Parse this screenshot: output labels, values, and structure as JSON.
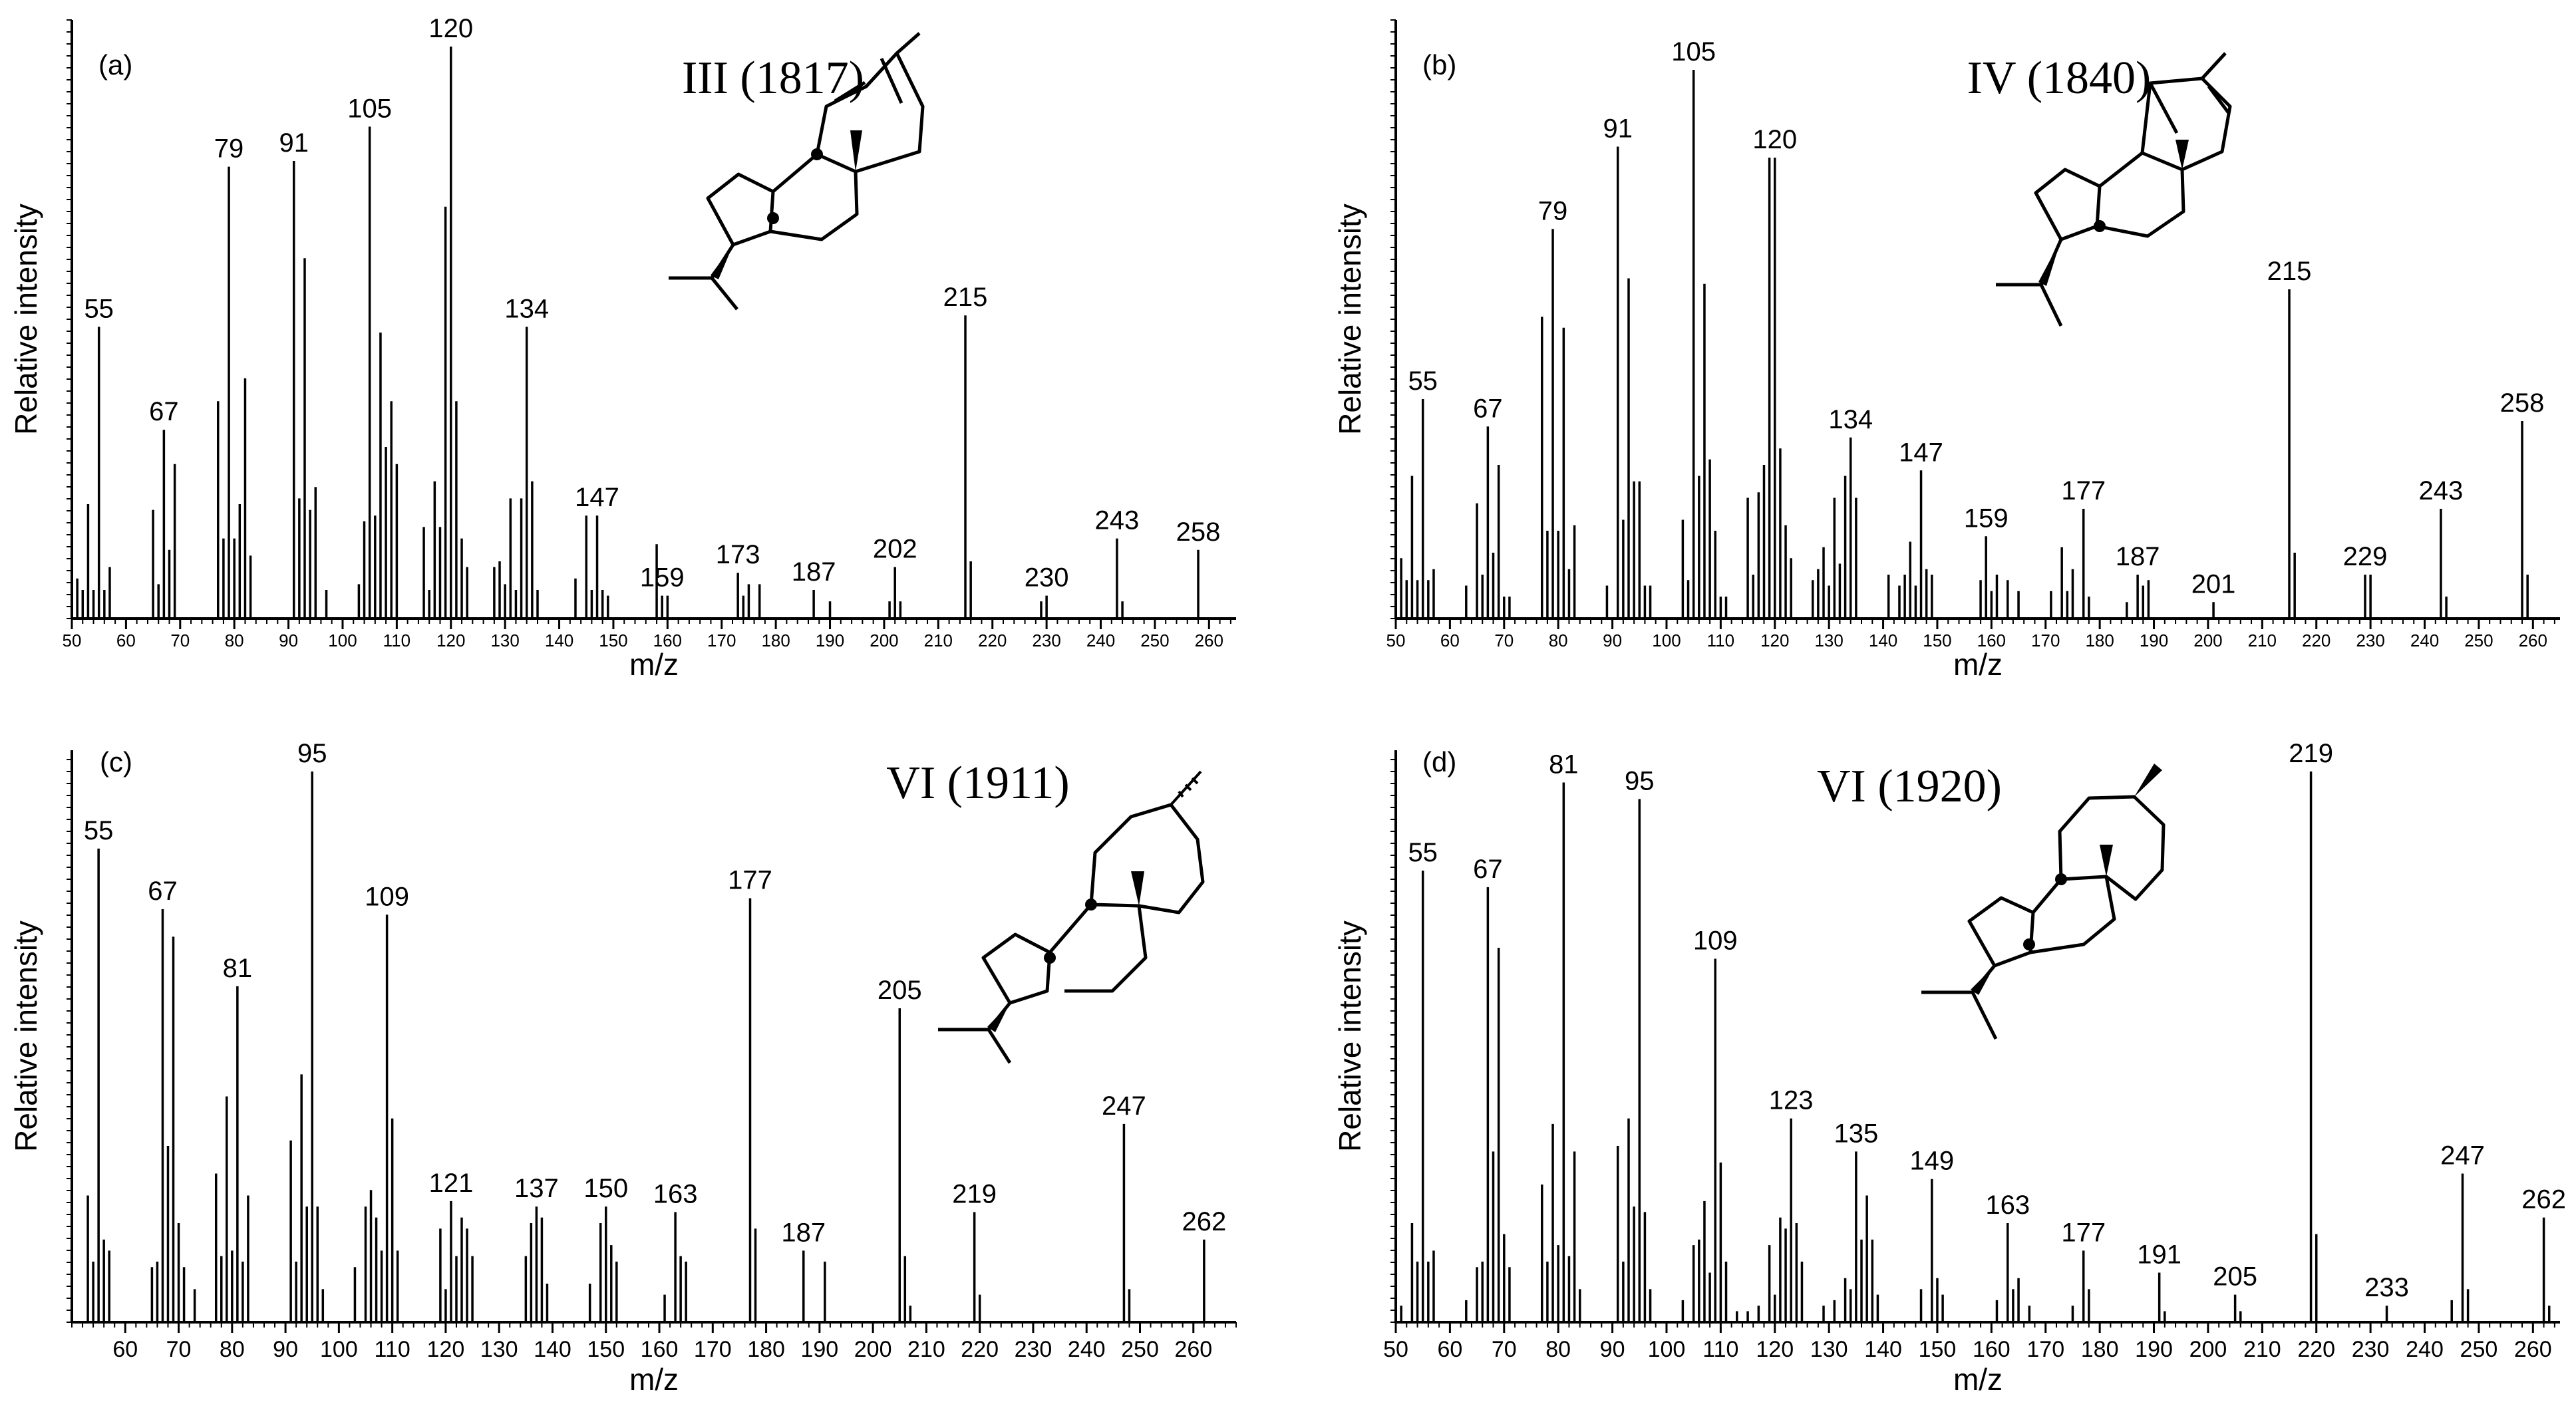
{
  "chart_data": [
    {
      "type": "bar",
      "panel_label": "(a)",
      "compound_label": "III (1817)",
      "xlabel": "m/z",
      "ylabel": "Relative intensity",
      "xlim": [
        50,
        265
      ],
      "ylim": [
        0,
        100
      ],
      "xticks": [
        50,
        60,
        70,
        80,
        90,
        100,
        110,
        120,
        130,
        140,
        150,
        160,
        170,
        180,
        190,
        200,
        210,
        220,
        230,
        240,
        250,
        260
      ],
      "peaks": [
        [
          51,
          7
        ],
        [
          52,
          5
        ],
        [
          53,
          20
        ],
        [
          54,
          5
        ],
        [
          55,
          51
        ],
        [
          56,
          5
        ],
        [
          57,
          9
        ],
        [
          65,
          19
        ],
        [
          66,
          6
        ],
        [
          67,
          33
        ],
        [
          68,
          12
        ],
        [
          69,
          27
        ],
        [
          77,
          38
        ],
        [
          78,
          14
        ],
        [
          79,
          79
        ],
        [
          80,
          14
        ],
        [
          81,
          20
        ],
        [
          82,
          42
        ],
        [
          83,
          11
        ],
        [
          91,
          80
        ],
        [
          92,
          21
        ],
        [
          93,
          63
        ],
        [
          94,
          19
        ],
        [
          95,
          23
        ],
        [
          97,
          5
        ],
        [
          103,
          6
        ],
        [
          104,
          17
        ],
        [
          105,
          86
        ],
        [
          106,
          18
        ],
        [
          107,
          50
        ],
        [
          108,
          30
        ],
        [
          109,
          38
        ],
        [
          110,
          27
        ],
        [
          115,
          16
        ],
        [
          116,
          5
        ],
        [
          117,
          24
        ],
        [
          118,
          16
        ],
        [
          119,
          72
        ],
        [
          120,
          100
        ],
        [
          121,
          38
        ],
        [
          122,
          14
        ],
        [
          123,
          9
        ],
        [
          128,
          9
        ],
        [
          129,
          10
        ],
        [
          130,
          6
        ],
        [
          131,
          21
        ],
        [
          132,
          5
        ],
        [
          133,
          21
        ],
        [
          134,
          51
        ],
        [
          135,
          24
        ],
        [
          136,
          5
        ],
        [
          143,
          7
        ],
        [
          145,
          18
        ],
        [
          146,
          5
        ],
        [
          147,
          18
        ],
        [
          148,
          5
        ],
        [
          149,
          4
        ],
        [
          158,
          13
        ],
        [
          159,
          4
        ],
        [
          160,
          4
        ],
        [
          173,
          8
        ],
        [
          174,
          4
        ],
        [
          175,
          6
        ],
        [
          177,
          6
        ],
        [
          187,
          5
        ],
        [
          190,
          3
        ],
        [
          201,
          3
        ],
        [
          202,
          9
        ],
        [
          203,
          3
        ],
        [
          215,
          53
        ],
        [
          216,
          10
        ],
        [
          229,
          3
        ],
        [
          230,
          4
        ],
        [
          243,
          14
        ],
        [
          244,
          3
        ],
        [
          258,
          12
        ]
      ],
      "peak_labels": [
        55,
        67,
        79,
        91,
        105,
        120,
        134,
        147,
        159,
        173,
        187,
        202,
        215,
        230,
        243,
        258
      ]
    },
    {
      "type": "bar",
      "panel_label": "(b)",
      "compound_label": "IV (1840)",
      "xlabel": "m/z",
      "ylabel": "Relative intensity",
      "xlim": [
        50,
        265
      ],
      "ylim": [
        0,
        100
      ],
      "xticks": [
        50,
        60,
        70,
        80,
        90,
        100,
        110,
        120,
        130,
        140,
        150,
        160,
        170,
        180,
        190,
        200,
        210,
        220,
        230,
        240,
        250,
        260
      ],
      "peaks": [
        [
          51,
          11
        ],
        [
          52,
          7
        ],
        [
          53,
          26
        ],
        [
          54,
          7
        ],
        [
          55,
          40
        ],
        [
          56,
          7
        ],
        [
          57,
          9
        ],
        [
          63,
          6
        ],
        [
          65,
          21
        ],
        [
          66,
          8
        ],
        [
          67,
          35
        ],
        [
          68,
          12
        ],
        [
          69,
          28
        ],
        [
          70,
          4
        ],
        [
          71,
          4
        ],
        [
          77,
          55
        ],
        [
          78,
          16
        ],
        [
          79,
          71
        ],
        [
          80,
          16
        ],
        [
          81,
          53
        ],
        [
          82,
          9
        ],
        [
          83,
          17
        ],
        [
          89,
          6
        ],
        [
          91,
          86
        ],
        [
          92,
          18
        ],
        [
          93,
          62
        ],
        [
          94,
          25
        ],
        [
          95,
          25
        ],
        [
          96,
          6
        ],
        [
          97,
          6
        ],
        [
          103,
          18
        ],
        [
          104,
          7
        ],
        [
          105,
          100
        ],
        [
          106,
          26
        ],
        [
          107,
          61
        ],
        [
          108,
          29
        ],
        [
          109,
          16
        ],
        [
          110,
          4
        ],
        [
          111,
          4
        ],
        [
          115,
          22
        ],
        [
          116,
          8
        ],
        [
          117,
          23
        ],
        [
          118,
          28
        ],
        [
          119,
          84
        ],
        [
          120,
          84
        ],
        [
          121,
          31
        ],
        [
          122,
          17
        ],
        [
          123,
          11
        ],
        [
          127,
          7
        ],
        [
          128,
          9
        ],
        [
          129,
          13
        ],
        [
          130,
          6
        ],
        [
          131,
          22
        ],
        [
          132,
          10
        ],
        [
          133,
          26
        ],
        [
          134,
          33
        ],
        [
          135,
          22
        ],
        [
          141,
          8
        ],
        [
          143,
          6
        ],
        [
          144,
          8
        ],
        [
          145,
          14
        ],
        [
          146,
          6
        ],
        [
          147,
          27
        ],
        [
          148,
          9
        ],
        [
          149,
          8
        ],
        [
          158,
          7
        ],
        [
          159,
          15
        ],
        [
          160,
          5
        ],
        [
          161,
          8
        ],
        [
          163,
          7
        ],
        [
          165,
          5
        ],
        [
          171,
          5
        ],
        [
          173,
          13
        ],
        [
          174,
          5
        ],
        [
          175,
          9
        ],
        [
          177,
          20
        ],
        [
          178,
          4
        ],
        [
          185,
          3
        ],
        [
          187,
          8
        ],
        [
          188,
          6
        ],
        [
          189,
          7
        ],
        [
          201,
          3
        ],
        [
          215,
          60
        ],
        [
          216,
          12
        ],
        [
          229,
          8
        ],
        [
          230,
          8
        ],
        [
          243,
          20
        ],
        [
          244,
          4
        ],
        [
          258,
          36
        ],
        [
          259,
          8
        ]
      ],
      "peak_labels": [
        55,
        67,
        79,
        91,
        105,
        120,
        134,
        147,
        159,
        177,
        187,
        201,
        215,
        229,
        243,
        258
      ]
    },
    {
      "type": "bar",
      "panel_label": "(c)",
      "compound_label": "VI (1911)",
      "xlabel": "m/z",
      "ylabel": "Relative intensity",
      "xlim": [
        50,
        268
      ],
      "ylim": [
        0,
        100
      ],
      "xticks": [
        60,
        70,
        80,
        90,
        100,
        110,
        120,
        130,
        140,
        150,
        160,
        170,
        180,
        190,
        200,
        210,
        220,
        230,
        240,
        250,
        260
      ],
      "peaks": [
        [
          53,
          23
        ],
        [
          54,
          11
        ],
        [
          55,
          86
        ],
        [
          56,
          15
        ],
        [
          57,
          13
        ],
        [
          65,
          10
        ],
        [
          66,
          11
        ],
        [
          67,
          75
        ],
        [
          68,
          32
        ],
        [
          69,
          70
        ],
        [
          70,
          18
        ],
        [
          71,
          10
        ],
        [
          73,
          6
        ],
        [
          77,
          27
        ],
        [
          78,
          12
        ],
        [
          79,
          41
        ],
        [
          80,
          13
        ],
        [
          81,
          61
        ],
        [
          82,
          11
        ],
        [
          83,
          23
        ],
        [
          91,
          33
        ],
        [
          92,
          11
        ],
        [
          93,
          45
        ],
        [
          94,
          21
        ],
        [
          95,
          100
        ],
        [
          96,
          21
        ],
        [
          97,
          6
        ],
        [
          103,
          10
        ],
        [
          105,
          21
        ],
        [
          106,
          24
        ],
        [
          107,
          19
        ],
        [
          108,
          13
        ],
        [
          109,
          74
        ],
        [
          110,
          37
        ],
        [
          111,
          13
        ],
        [
          119,
          17
        ],
        [
          120,
          6
        ],
        [
          121,
          22
        ],
        [
          122,
          12
        ],
        [
          123,
          19
        ],
        [
          124,
          17
        ],
        [
          125,
          12
        ],
        [
          135,
          12
        ],
        [
          136,
          18
        ],
        [
          137,
          21
        ],
        [
          138,
          19
        ],
        [
          139,
          7
        ],
        [
          147,
          7
        ],
        [
          149,
          18
        ],
        [
          150,
          21
        ],
        [
          151,
          14
        ],
        [
          152,
          11
        ],
        [
          161,
          5
        ],
        [
          163,
          20
        ],
        [
          164,
          12
        ],
        [
          165,
          11
        ],
        [
          177,
          77
        ],
        [
          178,
          17
        ],
        [
          187,
          13
        ],
        [
          191,
          11
        ],
        [
          205,
          57
        ],
        [
          206,
          12
        ],
        [
          207,
          3
        ],
        [
          219,
          20
        ],
        [
          220,
          5
        ],
        [
          247,
          36
        ],
        [
          248,
          6
        ],
        [
          262,
          15
        ]
      ],
      "peak_labels": [
        55,
        67,
        81,
        95,
        109,
        121,
        137,
        150,
        163,
        177,
        187,
        205,
        219,
        247,
        262
      ]
    },
    {
      "type": "bar",
      "panel_label": "(d)",
      "compound_label": "VI (1920)",
      "xlabel": "m/z",
      "ylabel": "Relative intensity",
      "xlim": [
        50,
        265
      ],
      "ylim": [
        0,
        100
      ],
      "xticks": [
        50,
        60,
        70,
        80,
        90,
        100,
        110,
        120,
        130,
        140,
        150,
        160,
        170,
        180,
        190,
        200,
        210,
        220,
        230,
        240,
        250,
        260
      ],
      "peaks": [
        [
          51,
          3
        ],
        [
          53,
          18
        ],
        [
          54,
          11
        ],
        [
          55,
          82
        ],
        [
          56,
          11
        ],
        [
          57,
          13
        ],
        [
          63,
          4
        ],
        [
          65,
          10
        ],
        [
          66,
          11
        ],
        [
          67,
          79
        ],
        [
          68,
          31
        ],
        [
          69,
          68
        ],
        [
          70,
          16
        ],
        [
          71,
          10
        ],
        [
          77,
          25
        ],
        [
          78,
          11
        ],
        [
          79,
          36
        ],
        [
          80,
          14
        ],
        [
          81,
          98
        ],
        [
          82,
          12
        ],
        [
          83,
          31
        ],
        [
          84,
          6
        ],
        [
          91,
          32
        ],
        [
          92,
          11
        ],
        [
          93,
          37
        ],
        [
          94,
          21
        ],
        [
          95,
          95
        ],
        [
          96,
          20
        ],
        [
          97,
          6
        ],
        [
          103,
          4
        ],
        [
          105,
          14
        ],
        [
          106,
          15
        ],
        [
          107,
          22
        ],
        [
          108,
          9
        ],
        [
          109,
          66
        ],
        [
          110,
          29
        ],
        [
          111,
          11
        ],
        [
          113,
          2
        ],
        [
          115,
          2
        ],
        [
          117,
          3
        ],
        [
          119,
          14
        ],
        [
          120,
          5
        ],
        [
          121,
          19
        ],
        [
          122,
          17
        ],
        [
          123,
          37
        ],
        [
          124,
          18
        ],
        [
          125,
          11
        ],
        [
          129,
          3
        ],
        [
          131,
          4
        ],
        [
          133,
          8
        ],
        [
          134,
          6
        ],
        [
          135,
          31
        ],
        [
          136,
          15
        ],
        [
          137,
          23
        ],
        [
          138,
          15
        ],
        [
          139,
          5
        ],
        [
          147,
          6
        ],
        [
          149,
          26
        ],
        [
          150,
          8
        ],
        [
          151,
          5
        ],
        [
          161,
          4
        ],
        [
          163,
          18
        ],
        [
          164,
          6
        ],
        [
          165,
          8
        ],
        [
          167,
          3
        ],
        [
          175,
          3
        ],
        [
          177,
          13
        ],
        [
          178,
          6
        ],
        [
          191,
          9
        ],
        [
          192,
          2
        ],
        [
          205,
          5
        ],
        [
          206,
          2
        ],
        [
          219,
          100
        ],
        [
          220,
          16
        ],
        [
          233,
          3
        ],
        [
          245,
          4
        ],
        [
          247,
          27
        ],
        [
          248,
          6
        ],
        [
          262,
          19
        ],
        [
          263,
          3
        ]
      ],
      "peak_labels": [
        55,
        67,
        81,
        95,
        109,
        123,
        135,
        149,
        163,
        177,
        191,
        205,
        219,
        233,
        247,
        262
      ]
    }
  ]
}
